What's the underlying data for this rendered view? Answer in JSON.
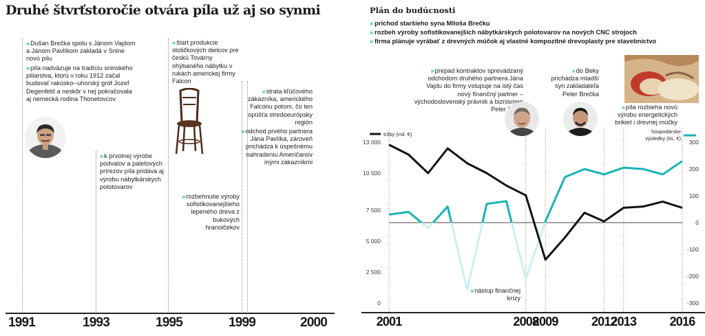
{
  "headline": "Druhé štvrťstoročie otvára píla už aj so synmi",
  "timeline": {
    "years": [
      "1991",
      "1993",
      "1995",
      "1999",
      "2000"
    ],
    "notes": [
      {
        "text": "Dušan Brečka spolu s Jánom Vajdom a Jánom Pavlíkom zakladá v Snine novú pílu"
      },
      {
        "text": "píla nadväzuje na tradíciu sninského piliarstva, ktorú v roku 1912 začal budovať rakúsko--uhorský gróf Jozef Degenfeld a neskôr v nej pokračovala aj nemecká rodina Thonetovcov"
      },
      {
        "text": "k prvotnej výrobe podvalov a paletových prírezov píla pridáva aj výrobu nábytkárskych polotovarov"
      },
      {
        "text": "štart produkcie stoličkových dielcov pre českú Továrny ohýbaného nábytku v rukách americkej firmy Falcon"
      },
      {
        "text": "strata kľúčového zákazníka, amerického Falconu potom, čo ten opúšťa stredoeurópsky región"
      },
      {
        "text": "odchod prvého partnera Jána Pavlíka, zároveň prichádza k úspešnému nahradeniu Američanov inými zákazníkmi"
      },
      {
        "text": "rozbehnutie výroby sofistikovanejšieho lepeného dreva z bukových hranolčekov"
      }
    ]
  },
  "plan": {
    "title": "Plán do budúcnosti",
    "items": [
      "príchod staršieho syna Miloša Brečku",
      "rozbeh výroby sofistikovanejších nábytkárskych polotovarov na nových CNC strojoch",
      "firma plánuje vyrábať z drevných múčok aj vlastné kompozitné drevoplasty pre stavebníctvo"
    ]
  },
  "chart_notes": [
    {
      "text": "prepad kontraktov sprevádzaný odchodom druhého partnera Jána Vajdu do firmy vstupuje na istý čas nový finančný partner – východoslovenský právnik a biznismen Peter Nižky"
    },
    {
      "text": "do Beky prichádza mladší syn zakladateľa Peter Brečka"
    },
    {
      "text": "píla rozbieha novú výrobu energetických brikiet i drevnej múčky"
    },
    {
      "text": "nástup finančnej krízy"
    }
  ],
  "colors": {
    "accent": "#19b3b7",
    "revenue": "#111111",
    "profit": "#19b3b7"
  },
  "chart_data": {
    "type": "line",
    "x_labels": [
      "2001",
      "2008",
      "2009",
      "2012",
      "2013",
      "2016"
    ],
    "x": [
      2001,
      2002,
      2003,
      2004,
      2005,
      2006,
      2007,
      2008,
      2009,
      2010,
      2011,
      2012,
      2013,
      2014,
      2015,
      2016
    ],
    "series": [
      {
        "name": "tržby (mil. €)",
        "axis": "left",
        "values": [
          12800,
          12000,
          10500,
          12500,
          11300,
          10500,
          9500,
          8700,
          3500,
          5300,
          7300,
          6600,
          7700,
          7800,
          8200,
          7700
        ]
      },
      {
        "name": "hospodárske výsledky (tis. €)",
        "axis": "right",
        "values": [
          30,
          40,
          -20,
          60,
          -250,
          70,
          80,
          -210,
          5,
          170,
          200,
          180,
          205,
          200,
          180,
          230
        ]
      }
    ],
    "yleft": {
      "ticks": [
        "13 000",
        "10 500",
        "7 500",
        "5 000",
        "2 500",
        "0"
      ],
      "ylim": [
        0,
        13000
      ]
    },
    "yright": {
      "ticks": [
        "300",
        "200",
        "100",
        "0",
        "-100",
        "-200",
        "-300"
      ],
      "ylim": [
        -300,
        300
      ]
    }
  }
}
